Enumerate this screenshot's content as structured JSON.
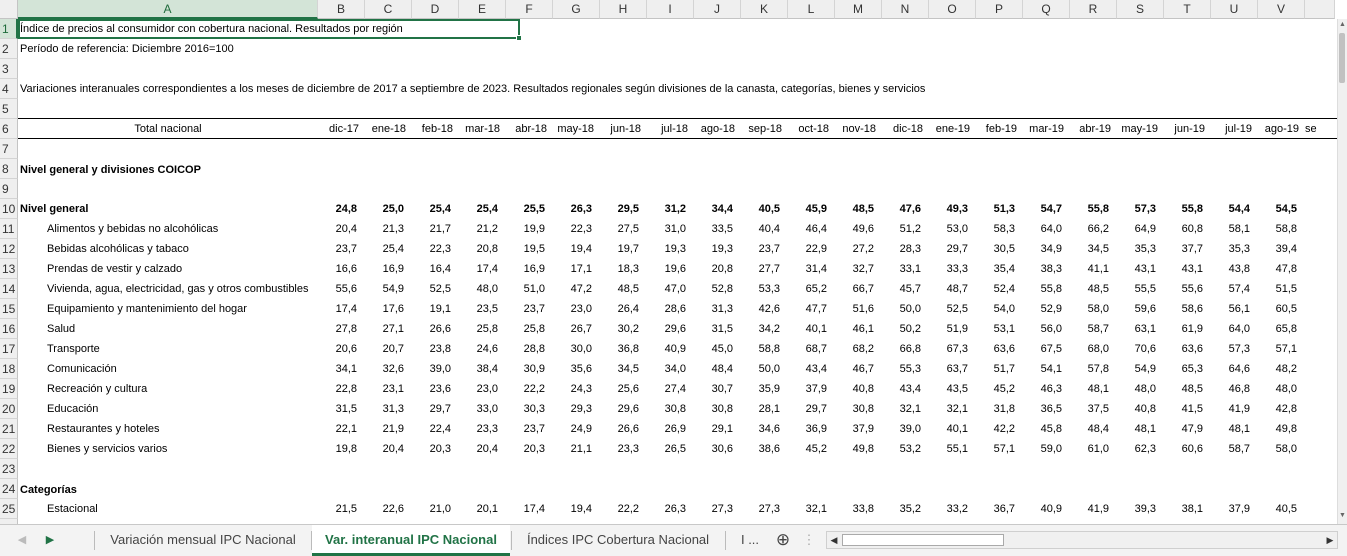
{
  "columns": [
    {
      "label": "A",
      "w": 300
    },
    {
      "label": "B",
      "w": 47
    },
    {
      "label": "C",
      "w": 47
    },
    {
      "label": "D",
      "w": 47
    },
    {
      "label": "E",
      "w": 47
    },
    {
      "label": "F",
      "w": 47
    },
    {
      "label": "G",
      "w": 47
    },
    {
      "label": "H",
      "w": 47
    },
    {
      "label": "I",
      "w": 47
    },
    {
      "label": "J",
      "w": 47
    },
    {
      "label": "K",
      "w": 47
    },
    {
      "label": "L",
      "w": 47
    },
    {
      "label": "M",
      "w": 47
    },
    {
      "label": "N",
      "w": 47
    },
    {
      "label": "O",
      "w": 47
    },
    {
      "label": "P",
      "w": 47
    },
    {
      "label": "Q",
      "w": 47
    },
    {
      "label": "R",
      "w": 47
    },
    {
      "label": "S",
      "w": 47
    },
    {
      "label": "T",
      "w": 47
    },
    {
      "label": "U",
      "w": 47
    },
    {
      "label": "V",
      "w": 47
    },
    {
      "label": "",
      "w": 30
    }
  ],
  "rows": [
    "1",
    "2",
    "3",
    "4",
    "5",
    "6",
    "7",
    "8",
    "9",
    "10",
    "11",
    "12",
    "13",
    "14",
    "15",
    "16",
    "17",
    "18",
    "19",
    "20",
    "21",
    "22",
    "23",
    "24",
    "25",
    "26"
  ],
  "text": {
    "r1": "Índice de precios al consumidor con cobertura nacional. Resultados por región",
    "r2": "Período de referencia: Diciembre 2016=100",
    "r4": "Variaciones interanuales correspondientes a los meses de diciembre de 2017 a septiembre de 2023. Resultados regionales según divisiones de la canasta, categorías, bienes y servicios",
    "header_label": "Total nacional",
    "r8": "Nivel general y divisiones COICOP",
    "r24": "Categorías"
  },
  "months": [
    "dic-17",
    "ene-18",
    "feb-18",
    "mar-18",
    "abr-18",
    "may-18",
    "jun-18",
    "jul-18",
    "ago-18",
    "sep-18",
    "oct-18",
    "nov-18",
    "dic-18",
    "ene-19",
    "feb-19",
    "mar-19",
    "abr-19",
    "may-19",
    "jun-19",
    "jul-19",
    "ago-19",
    "se"
  ],
  "data_rows": [
    {
      "row": 10,
      "label": "Nivel general",
      "bold": true,
      "indent": false,
      "values": [
        "24,8",
        "25,0",
        "25,4",
        "25,4",
        "25,5",
        "26,3",
        "29,5",
        "31,2",
        "34,4",
        "40,5",
        "45,9",
        "48,5",
        "47,6",
        "49,3",
        "51,3",
        "54,7",
        "55,8",
        "57,3",
        "55,8",
        "54,4",
        "54,5"
      ]
    },
    {
      "row": 11,
      "label": "Alimentos y bebidas no alcohólicas",
      "bold": false,
      "indent": true,
      "values": [
        "20,4",
        "21,3",
        "21,7",
        "21,2",
        "19,9",
        "22,3",
        "27,5",
        "31,0",
        "33,5",
        "40,4",
        "46,4",
        "49,6",
        "51,2",
        "53,0",
        "58,3",
        "64,0",
        "66,2",
        "64,9",
        "60,8",
        "58,1",
        "58,8"
      ]
    },
    {
      "row": 12,
      "label": "Bebidas alcohólicas y tabaco",
      "bold": false,
      "indent": true,
      "values": [
        "23,7",
        "25,4",
        "22,3",
        "20,8",
        "19,5",
        "19,4",
        "19,7",
        "19,3",
        "19,3",
        "23,7",
        "22,9",
        "27,2",
        "28,3",
        "29,7",
        "30,5",
        "34,9",
        "34,5",
        "35,3",
        "37,7",
        "35,3",
        "39,4"
      ]
    },
    {
      "row": 13,
      "label": "Prendas de vestir y calzado",
      "bold": false,
      "indent": true,
      "values": [
        "16,6",
        "16,9",
        "16,4",
        "17,4",
        "16,9",
        "17,1",
        "18,3",
        "19,6",
        "20,8",
        "27,7",
        "31,4",
        "32,7",
        "33,1",
        "33,3",
        "35,4",
        "38,3",
        "41,1",
        "43,1",
        "43,1",
        "43,8",
        "47,8"
      ]
    },
    {
      "row": 14,
      "label": "Vivienda, agua, electricidad, gas y otros combustibles",
      "bold": false,
      "indent": true,
      "values": [
        "55,6",
        "54,9",
        "52,5",
        "48,0",
        "51,0",
        "47,2",
        "48,5",
        "47,0",
        "52,8",
        "53,3",
        "65,2",
        "66,7",
        "45,7",
        "48,7",
        "52,4",
        "55,8",
        "48,5",
        "55,5",
        "55,6",
        "57,4",
        "51,5"
      ]
    },
    {
      "row": 15,
      "label": "Equipamiento y mantenimiento del hogar",
      "bold": false,
      "indent": true,
      "values": [
        "17,4",
        "17,6",
        "19,1",
        "23,5",
        "23,7",
        "23,0",
        "26,4",
        "28,6",
        "31,3",
        "42,6",
        "47,7",
        "51,6",
        "50,0",
        "52,5",
        "54,0",
        "52,9",
        "58,0",
        "59,6",
        "58,6",
        "56,1",
        "60,5"
      ]
    },
    {
      "row": 16,
      "label": "Salud",
      "bold": false,
      "indent": true,
      "values": [
        "27,8",
        "27,1",
        "26,6",
        "25,8",
        "25,8",
        "26,7",
        "30,2",
        "29,6",
        "31,5",
        "34,2",
        "40,1",
        "46,1",
        "50,2",
        "51,9",
        "53,1",
        "56,0",
        "58,7",
        "63,1",
        "61,9",
        "64,0",
        "65,8"
      ]
    },
    {
      "row": 17,
      "label": "Transporte",
      "bold": false,
      "indent": true,
      "values": [
        "20,6",
        "20,7",
        "23,8",
        "24,6",
        "28,8",
        "30,0",
        "36,8",
        "40,9",
        "45,0",
        "58,8",
        "68,7",
        "68,2",
        "66,8",
        "67,3",
        "63,6",
        "67,5",
        "68,0",
        "70,6",
        "63,6",
        "57,3",
        "57,1"
      ]
    },
    {
      "row": 18,
      "label": "Comunicación",
      "bold": false,
      "indent": true,
      "values": [
        "34,1",
        "32,6",
        "39,0",
        "38,4",
        "30,9",
        "35,6",
        "34,5",
        "34,0",
        "48,4",
        "50,0",
        "43,4",
        "46,7",
        "55,3",
        "63,7",
        "51,7",
        "54,1",
        "57,8",
        "54,9",
        "65,3",
        "64,6",
        "48,2"
      ]
    },
    {
      "row": 19,
      "label": "Recreación y cultura",
      "bold": false,
      "indent": true,
      "values": [
        "22,8",
        "23,1",
        "23,6",
        "23,0",
        "22,2",
        "24,3",
        "25,6",
        "27,4",
        "30,7",
        "35,9",
        "37,9",
        "40,8",
        "43,4",
        "43,5",
        "45,2",
        "46,3",
        "48,1",
        "48,0",
        "48,5",
        "46,8",
        "48,0"
      ]
    },
    {
      "row": 20,
      "label": "Educación",
      "bold": false,
      "indent": true,
      "values": [
        "31,5",
        "31,3",
        "29,7",
        "33,0",
        "30,3",
        "29,3",
        "29,6",
        "30,8",
        "30,8",
        "28,1",
        "29,7",
        "30,8",
        "32,1",
        "32,1",
        "31,8",
        "36,5",
        "37,5",
        "40,8",
        "41,5",
        "41,9",
        "42,8"
      ]
    },
    {
      "row": 21,
      "label": "Restaurantes y hoteles",
      "bold": false,
      "indent": true,
      "values": [
        "22,1",
        "21,9",
        "22,4",
        "23,3",
        "23,7",
        "24,9",
        "26,6",
        "26,9",
        "29,1",
        "34,6",
        "36,9",
        "37,9",
        "39,0",
        "40,1",
        "42,2",
        "45,8",
        "48,4",
        "48,1",
        "47,9",
        "48,1",
        "49,8"
      ]
    },
    {
      "row": 22,
      "label": "Bienes y servicios varios",
      "bold": false,
      "indent": true,
      "values": [
        "19,8",
        "20,4",
        "20,3",
        "20,4",
        "20,3",
        "21,1",
        "23,3",
        "26,5",
        "30,6",
        "38,6",
        "45,2",
        "49,8",
        "53,2",
        "55,1",
        "57,1",
        "59,0",
        "61,0",
        "62,3",
        "60,6",
        "58,7",
        "58,0"
      ]
    },
    {
      "row": 25,
      "label": "Estacional",
      "bold": false,
      "indent": true,
      "values": [
        "21,5",
        "22,6",
        "21,0",
        "20,1",
        "17,4",
        "19,4",
        "22,2",
        "26,3",
        "27,3",
        "27,3",
        "32,1",
        "33,8",
        "35,2",
        "33,2",
        "36,7",
        "40,9",
        "41,9",
        "39,3",
        "38,1",
        "37,9",
        "40,5"
      ]
    }
  ],
  "tabs": {
    "tab1": "Variación mensual IPC Nacional",
    "tab2": "Var. interanual IPC Nacional",
    "tab3": "Índices IPC Cobertura Nacional",
    "more": "I ...",
    "add": "⊕",
    "nav_next": "▶",
    "nav_prev": "◀"
  },
  "icons": {
    "add_sheet": "plus-circle-icon",
    "scroll_left": "◀",
    "scroll_right": "▶",
    "scroll_up": "▲",
    "scroll_down": "▼"
  },
  "colors": {
    "accent": "#217346"
  }
}
